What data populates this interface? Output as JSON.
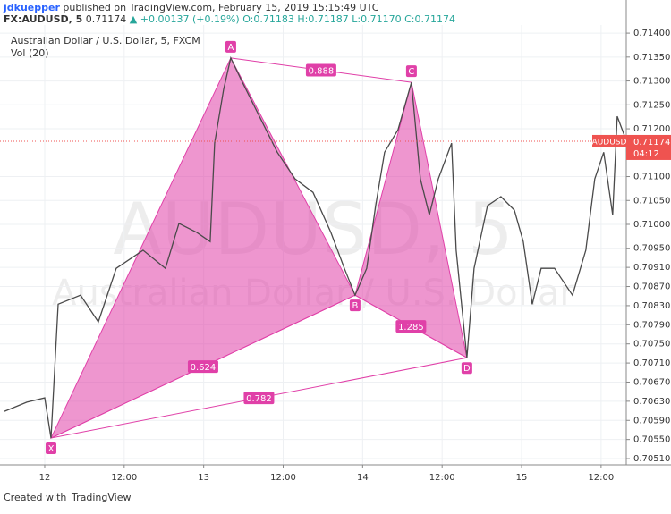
{
  "header": {
    "publisher": "jdkuepper",
    "published": "published on TradingView.com, February 15, 2019 15:15:49 UTC",
    "symbol": "FX:AUDUSD, 5",
    "last": "0.71174",
    "change": "▲ +0.00137 (+0.19%)",
    "ohlc": "O:0.71183 H:0.71187 L:0.71170 C:0.71174"
  },
  "footer": {
    "created": "Created with",
    "brand": "TradingView"
  },
  "chart_data": {
    "type": "line",
    "title": "Australian Dollar / U.S. Dollar, 5, FXCM",
    "indicator": "Vol (20)",
    "watermark": [
      "AUDUSD, 5",
      "Australian Dollar / U.S. Dollar"
    ],
    "x": [
      -6.08,
      -2.7,
      0,
      0.95,
      2.03,
      5.4,
      8.1,
      10.8,
      14.85,
      18.23,
      20.26,
      22.96,
      24.98,
      25.66,
      27.01,
      28.09,
      29.71,
      32.41,
      35.11,
      37.81,
      40.51,
      43.21,
      45.24,
      46.86,
      48.62,
      49.97,
      51.32,
      53.34,
      55.37,
      56.72,
      58.07,
      59.42,
      61.44,
      62.12,
      63.74,
      64.82,
      66.85,
      68.87,
      70.9,
      72.25,
      73.6,
      74.95,
      76.97,
      79.68,
      81.7,
      83.05,
      84.4,
      85.75,
      86.43,
      87.78
    ],
    "series": [
      {
        "name": "AUDUSD",
        "color": "#4a4a4a",
        "values": [
          0.70609,
          0.70628,
          0.70637,
          0.70553,
          0.70833,
          0.70852,
          0.70796,
          0.70908,
          0.70946,
          0.70908,
          0.71002,
          0.70983,
          0.70964,
          0.7117,
          0.71282,
          0.71348,
          0.71301,
          0.71226,
          0.71151,
          0.71095,
          0.71067,
          0.70983,
          0.70908,
          0.70852,
          0.70908,
          0.71039,
          0.71151,
          0.71198,
          0.71297,
          0.71095,
          0.7102,
          0.71095,
          0.7117,
          0.70946,
          0.70721,
          0.70908,
          0.71039,
          0.71058,
          0.7103,
          0.70964,
          0.70833,
          0.70908,
          0.70908,
          0.70852,
          0.70946,
          0.71095,
          0.71151,
          0.7102,
          0.71226,
          0.71176
        ]
      }
    ],
    "xlim": [
      -6.75,
      87.8
    ],
    "xticks": [
      {
        "value": 0,
        "label": "12"
      },
      {
        "value": 12,
        "label": "12:00"
      },
      {
        "value": 24,
        "label": "13"
      },
      {
        "value": 36,
        "label": "12:00"
      },
      {
        "value": 48,
        "label": "14"
      },
      {
        "value": 60,
        "label": "12:00"
      },
      {
        "value": 72,
        "label": "15"
      },
      {
        "value": 84,
        "label": "12:00"
      }
    ],
    "ylim": [
      0.70497,
      0.71417
    ],
    "yticks": [
      {
        "value": 0.714,
        "label": "0.71400"
      },
      {
        "value": 0.7135,
        "label": "0.71350"
      },
      {
        "value": 0.713,
        "label": "0.71300"
      },
      {
        "value": 0.7125,
        "label": "0.71250"
      },
      {
        "value": 0.712,
        "label": "0.71200"
      },
      {
        "value": 0.711,
        "label": "0.71100"
      },
      {
        "value": 0.7105,
        "label": "0.71050"
      },
      {
        "value": 0.71,
        "label": "0.71000"
      },
      {
        "value": 0.7095,
        "label": "0.70950"
      },
      {
        "value": 0.7091,
        "label": "0.70910"
      },
      {
        "value": 0.7087,
        "label": "0.70870"
      },
      {
        "value": 0.7083,
        "label": "0.70830"
      },
      {
        "value": 0.7079,
        "label": "0.70790"
      },
      {
        "value": 0.7075,
        "label": "0.70750"
      },
      {
        "value": 0.7071,
        "label": "0.70710"
      },
      {
        "value": 0.7067,
        "label": "0.70670"
      },
      {
        "value": 0.7063,
        "label": "0.70630"
      },
      {
        "value": 0.7059,
        "label": "0.70590"
      },
      {
        "value": 0.7055,
        "label": "0.70550"
      },
      {
        "value": 0.7051,
        "label": "0.70510"
      }
    ],
    "grid": true,
    "last_price": {
      "value": 0.71174,
      "countdown": "04:12",
      "color": "#ef5350"
    },
    "pattern": {
      "color": "#e040a8",
      "points": [
        {
          "label": "X",
          "x": 0.95,
          "y": 0.70553
        },
        {
          "label": "A",
          "x": 28.09,
          "y": 0.71348
        },
        {
          "label": "B",
          "x": 46.86,
          "y": 0.70852
        },
        {
          "label": "C",
          "x": 55.37,
          "y": 0.71297
        },
        {
          "label": "D",
          "x": 63.74,
          "y": 0.70721
        }
      ],
      "ratios": [
        0.624,
        0.888,
        1.285,
        0.782
      ]
    }
  }
}
